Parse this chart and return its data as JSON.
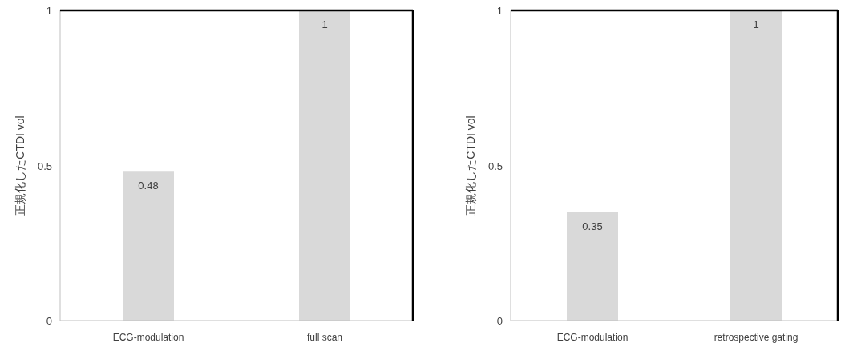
{
  "chart_data": [
    {
      "type": "bar",
      "ylabel": "正規化したCTDI vol",
      "categories": [
        "ECG-modulation",
        "full scan"
      ],
      "values": [
        0.48,
        1
      ],
      "color": "#d9d9d9",
      "ylim": [
        0,
        1
      ],
      "yticks": [
        0,
        0.5,
        1
      ],
      "data_labels": true
    },
    {
      "type": "bar",
      "ylabel": "正規化したCTDI vol",
      "categories": [
        "ECG-modulation",
        "retrospective gating"
      ],
      "values": [
        0.35,
        1
      ],
      "color": "#d9d9d9",
      "ylim": [
        0,
        1
      ],
      "yticks": [
        0,
        0.5,
        1
      ],
      "data_labels": true
    }
  ]
}
